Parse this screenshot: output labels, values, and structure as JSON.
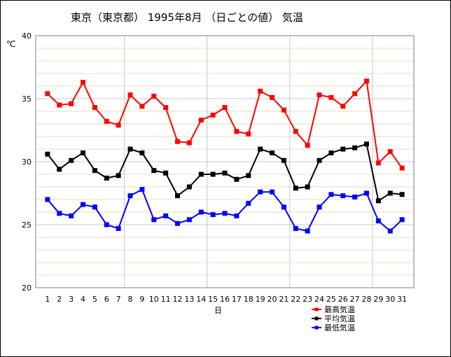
{
  "chart_data": {
    "type": "line",
    "title": "東京（東京都） 1995年8月 （日ごとの値） 気温",
    "xlabel": "日",
    "ylabel": "℃",
    "ylim": [
      20,
      40
    ],
    "yticks": [
      20,
      25,
      30,
      35,
      40
    ],
    "grid": true,
    "legend_position": "bottom-right",
    "categories": [
      1,
      2,
      3,
      4,
      5,
      6,
      7,
      8,
      9,
      10,
      11,
      12,
      13,
      14,
      15,
      16,
      17,
      18,
      19,
      20,
      21,
      22,
      23,
      24,
      25,
      26,
      27,
      28,
      29,
      30,
      31
    ],
    "series": [
      {
        "name": "最高気温",
        "color": "#ff0000",
        "values": [
          35.4,
          34.5,
          34.6,
          36.3,
          34.3,
          33.2,
          32.9,
          35.3,
          34.4,
          35.2,
          34.3,
          31.6,
          31.5,
          33.3,
          33.7,
          34.3,
          32.4,
          32.2,
          35.6,
          35.1,
          34.1,
          32.4,
          31.3,
          35.3,
          35.1,
          34.4,
          35.4,
          36.4,
          29.9,
          30.8,
          29.5
        ]
      },
      {
        "name": "平均気温",
        "color": "#000000",
        "values": [
          30.6,
          29.4,
          30.1,
          30.7,
          29.3,
          28.7,
          28.9,
          31.0,
          30.7,
          29.3,
          29.1,
          27.3,
          28.0,
          29.0,
          29.0,
          29.1,
          28.6,
          28.9,
          31.0,
          30.7,
          30.1,
          27.9,
          28.0,
          30.1,
          30.7,
          31.0,
          31.1,
          31.4,
          26.9,
          27.5,
          27.4
        ]
      },
      {
        "name": "最低気温",
        "color": "#0000ff",
        "values": [
          27.0,
          25.9,
          25.7,
          26.6,
          26.4,
          25.0,
          24.7,
          27.3,
          27.8,
          25.4,
          25.7,
          25.1,
          25.4,
          26.0,
          25.8,
          25.9,
          25.7,
          26.7,
          27.6,
          27.6,
          26.4,
          24.7,
          24.5,
          26.4,
          27.4,
          27.3,
          27.2,
          27.5,
          25.3,
          24.5,
          25.4
        ]
      }
    ]
  }
}
